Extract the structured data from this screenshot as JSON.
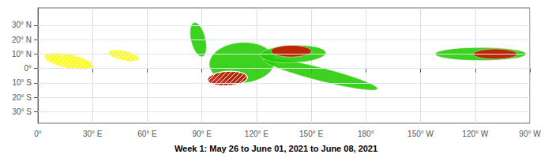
{
  "chart_data": {
    "type": "ellipse",
    "title": "Week 1: May 26 to June 01, 2021 to June 08, 2021",
    "xlim": [
      0,
      270
    ],
    "ylim": [
      -38,
      42
    ],
    "xticks": [
      {
        "value": 0,
        "label": "0°"
      },
      {
        "value": 30,
        "label": "30° E"
      },
      {
        "value": 60,
        "label": "60° E"
      },
      {
        "value": 90,
        "label": "90° E"
      },
      {
        "value": 120,
        "label": "120° E"
      },
      {
        "value": 150,
        "label": "150° E"
      },
      {
        "value": 180,
        "label": "180°"
      },
      {
        "value": 210,
        "label": "150° W"
      },
      {
        "value": 240,
        "label": "120° W"
      },
      {
        "value": 270,
        "label": "90° W"
      }
    ],
    "yticks": [
      {
        "value": -30,
        "label": "30° S"
      },
      {
        "value": -20,
        "label": "20° S"
      },
      {
        "value": -10,
        "label": "10° S"
      },
      {
        "value": 0,
        "label": "0°"
      },
      {
        "value": 10,
        "label": "10° N"
      },
      {
        "value": 20,
        "label": "20° N"
      },
      {
        "value": 30,
        "label": "30° N"
      }
    ],
    "grid": true,
    "series": [
      {
        "color": "#ffff00",
        "marker": "hatched",
        "cx": 17,
        "cy": 5,
        "rx": 14,
        "ry": 5,
        "angle": -15
      },
      {
        "color": "#ffff00",
        "marker": "hatched",
        "cx": 47,
        "cy": 9,
        "rx": 9,
        "ry": 3.5,
        "angle": -15
      },
      {
        "color": "#22cc00",
        "marker": "solid",
        "cx": 88,
        "cy": 20,
        "rx": 4,
        "ry": 12,
        "angle": 10
      },
      {
        "color": "#22cc00",
        "marker": "solid",
        "cx": 112,
        "cy": 4,
        "rx": 18,
        "ry": 14,
        "angle": 8
      },
      {
        "color": "#cc1100",
        "marker": "hatched",
        "cx": 104,
        "cy": -7,
        "rx": 11,
        "ry": 5,
        "angle": 5
      },
      {
        "color": "#22cc00",
        "marker": "solid",
        "cx": 155,
        "cy": -4,
        "rx": 33,
        "ry": 4.5,
        "angle": -18
      },
      {
        "color": "#22cc00",
        "marker": "solid",
        "cx": 140,
        "cy": 10,
        "rx": 18,
        "ry": 6,
        "angle": 3
      },
      {
        "color": "#cc1100",
        "marker": "solid",
        "cx": 139,
        "cy": 12,
        "rx": 11,
        "ry": 4,
        "angle": 0
      },
      {
        "color": "#22cc00",
        "marker": "solid",
        "cx": 243,
        "cy": 10,
        "rx": 25,
        "ry": 4.5,
        "angle": 0
      },
      {
        "color": "#cc1100",
        "marker": "solid",
        "cx": 251,
        "cy": 10,
        "rx": 12,
        "ry": 3.5,
        "angle": 0
      }
    ]
  }
}
